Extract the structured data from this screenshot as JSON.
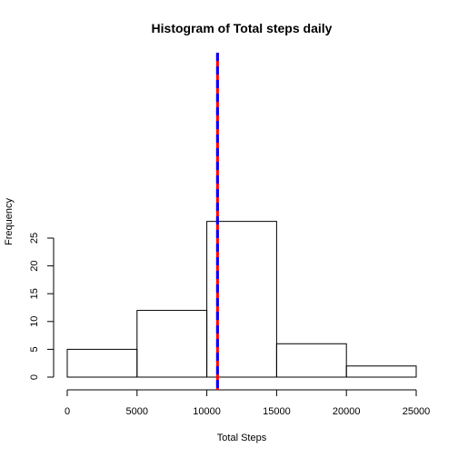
{
  "chart_data": {
    "type": "bar",
    "title": "Histogram of Total steps daily",
    "xlabel": "Total Steps",
    "ylabel": "Frequency",
    "bins": [
      {
        "from": 0,
        "to": 5000,
        "count": 5
      },
      {
        "from": 5000,
        "to": 10000,
        "count": 12
      },
      {
        "from": 10000,
        "to": 15000,
        "count": 28
      },
      {
        "from": 15000,
        "to": 20000,
        "count": 6
      },
      {
        "from": 20000,
        "to": 25000,
        "count": 2
      }
    ],
    "xlim": [
      0,
      25000
    ],
    "ylim": [
      0,
      28
    ],
    "xticks": [
      0,
      5000,
      10000,
      15000,
      20000,
      25000
    ],
    "yticks": [
      0,
      5,
      10,
      15,
      20,
      25
    ],
    "reference_lines": [
      {
        "value": 10766,
        "color": "#ff0000",
        "style": "solid"
      },
      {
        "value": 10766,
        "color": "#0000ff",
        "style": "dashed"
      }
    ],
    "grid": false,
    "legend": "none"
  }
}
